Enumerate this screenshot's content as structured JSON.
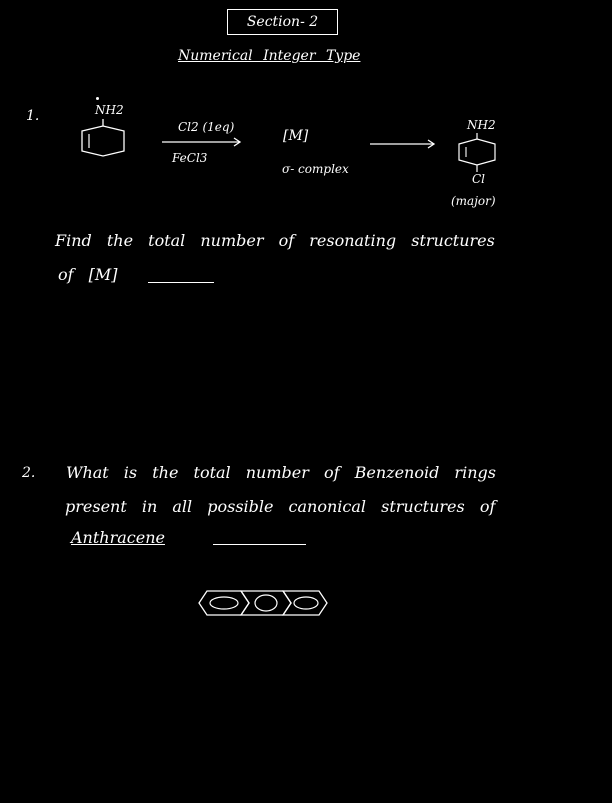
{
  "header": {
    "section_title": "Section- 2",
    "subtitle": "Numerical Integer Type"
  },
  "q1": {
    "number": "1.",
    "reactant_label": "NH2",
    "reagent_top": "Cl2 (1eq)",
    "reagent_bottom": "FeCl3",
    "intermediate": "[M]",
    "intermediate_note": "σ- complex",
    "product_top": "NH2",
    "product_bottom": "Cl",
    "product_note": "(major)",
    "question_line1": "Find the total number of resonating structures",
    "question_line2": "of [M]"
  },
  "q2": {
    "number": "2.",
    "line1": "What is the total number of Benzenoid rings",
    "line2": "present in all possible canonical structures of",
    "line3": "Anthracene"
  }
}
